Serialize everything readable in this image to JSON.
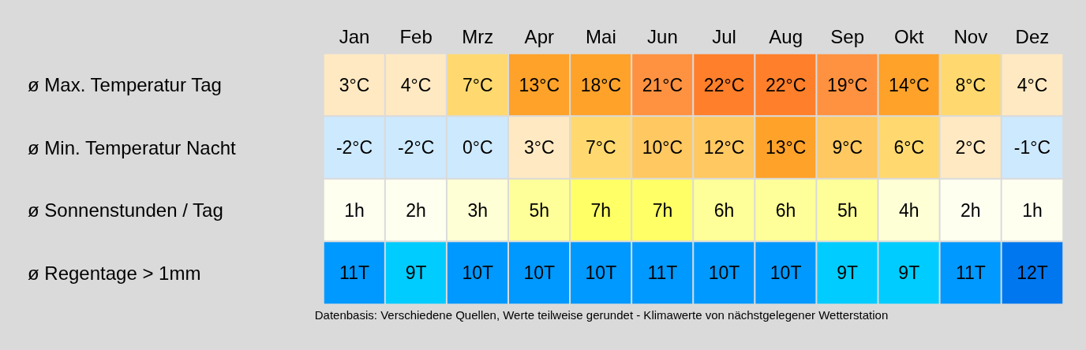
{
  "chart_data": {
    "type": "heatmap",
    "categories": [
      "Jan",
      "Feb",
      "Mrz",
      "Apr",
      "Mai",
      "Jun",
      "Jul",
      "Aug",
      "Sep",
      "Okt",
      "Nov",
      "Dez"
    ],
    "y_categories": [
      "ø Max. Temperatur Tag",
      "ø Min. Temperatur Nacht",
      "ø Sonnenstunden / Tag",
      "ø Regentage > 1mm"
    ],
    "cells": [
      [
        3,
        4,
        7,
        13,
        18,
        21,
        22,
        22,
        19,
        14,
        8,
        4
      ],
      [
        -2,
        -2,
        0,
        3,
        7,
        10,
        12,
        13,
        9,
        6,
        2,
        -1
      ],
      [
        1,
        2,
        3,
        5,
        7,
        7,
        6,
        6,
        5,
        4,
        2,
        1
      ],
      [
        11,
        9,
        10,
        10,
        10,
        11,
        10,
        10,
        9,
        9,
        11,
        12
      ]
    ],
    "cell_labels": [
      [
        "3°C",
        "4°C",
        "7°C",
        "13°C",
        "18°C",
        "21°C",
        "22°C",
        "22°C",
        "19°C",
        "14°C",
        "8°C",
        "4°C"
      ],
      [
        "-2°C",
        "-2°C",
        "0°C",
        "3°C",
        "7°C",
        "10°C",
        "12°C",
        "13°C",
        "9°C",
        "6°C",
        "2°C",
        "-1°C"
      ],
      [
        "1h",
        "2h",
        "3h",
        "5h",
        "7h",
        "7h",
        "6h",
        "6h",
        "5h",
        "4h",
        "2h",
        "1h"
      ],
      [
        "11T",
        "9T",
        "10T",
        "10T",
        "10T",
        "11T",
        "10T",
        "10T",
        "9T",
        "9T",
        "11T",
        "12T"
      ]
    ],
    "annotations": [
      "Datenbasis: Verschiedene Quellen, Werte teilweise gerundet - Klimawerte von nächstgelegener Wetterstation"
    ]
  }
}
